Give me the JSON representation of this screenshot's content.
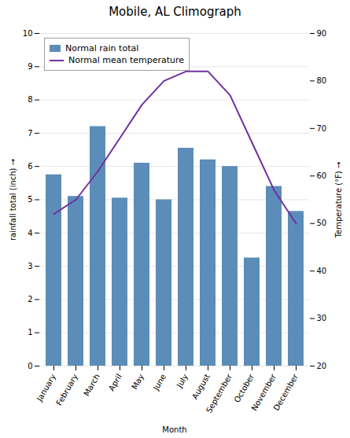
{
  "chart_data": {
    "type": "bar",
    "title": "Mobile, AL Climograph",
    "categories": [
      "January",
      "February",
      "March",
      "April",
      "May",
      "June",
      "July",
      "August",
      "September",
      "October",
      "November",
      "December"
    ],
    "xlabel": "Month",
    "ylabel": "rainfall total (inch)",
    "y2label": "Temperature (°F)",
    "series": [
      {
        "name": "Normal rain total",
        "type": "bar",
        "color": "#5b8db8",
        "values": [
          5.75,
          5.1,
          7.2,
          5.05,
          6.1,
          5.0,
          6.55,
          6.2,
          6.0,
          3.25,
          5.4,
          4.65
        ]
      },
      {
        "name": "Normal mean temperature",
        "type": "line",
        "axis": "y2",
        "color": "#7030a0",
        "values": [
          52,
          55,
          61,
          68,
          75,
          80,
          82,
          82,
          77,
          67,
          57,
          50
        ]
      }
    ],
    "ylim": [
      0,
      10
    ],
    "yticks": [
      0,
      1,
      2,
      3,
      4,
      5,
      6,
      7,
      8,
      9,
      10
    ],
    "y2lim": [
      20,
      90
    ],
    "y2ticks": [
      20,
      30,
      40,
      50,
      60,
      70,
      80,
      90
    ],
    "grid": true,
    "legend": "upper left"
  }
}
